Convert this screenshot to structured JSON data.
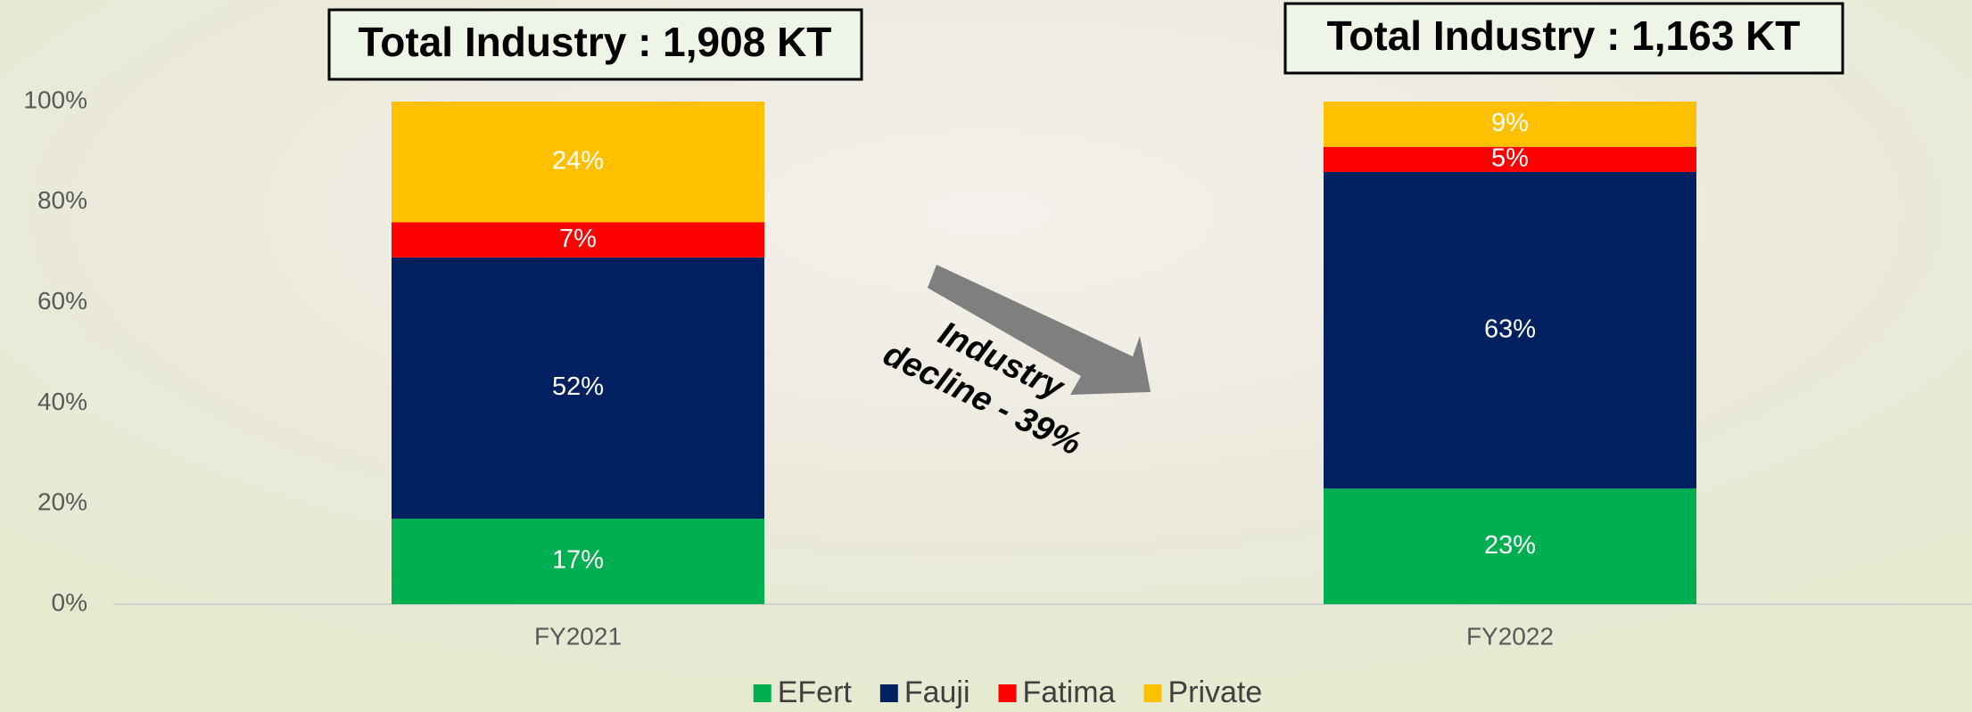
{
  "chart_data": {
    "type": "stacked_bar",
    "categories": [
      "FY2021",
      "FY2022"
    ],
    "series": [
      {
        "name": "EFert",
        "color": "#00b050",
        "values": [
          17,
          23
        ],
        "value_labels": [
          "17%",
          "23%"
        ]
      },
      {
        "name": "Fauji",
        "color": "#002060",
        "values": [
          52,
          63
        ],
        "value_labels": [
          "52%",
          "63%"
        ]
      },
      {
        "name": "Fatima",
        "color": "#ff0000",
        "values": [
          7,
          5
        ],
        "value_labels": [
          "7%",
          "5%"
        ]
      },
      {
        "name": "Private",
        "color": "#ffc000",
        "values": [
          24,
          9
        ],
        "value_labels": [
          "24%",
          "9%"
        ]
      }
    ],
    "ylim": [
      0,
      100
    ],
    "yticks": [
      {
        "value": 0,
        "label": "0%"
      },
      {
        "value": 20,
        "label": "20%"
      },
      {
        "value": 40,
        "label": "40%"
      },
      {
        "value": 60,
        "label": "60%"
      },
      {
        "value": 80,
        "label": "80%"
      },
      {
        "value": 100,
        "label": "100%"
      }
    ],
    "legend": "bottom",
    "annotations": [
      "Total Industry : 1,908 KT",
      "Total Industry : 1,163 KT",
      "Industry",
      "decline - 39%"
    ]
  }
}
